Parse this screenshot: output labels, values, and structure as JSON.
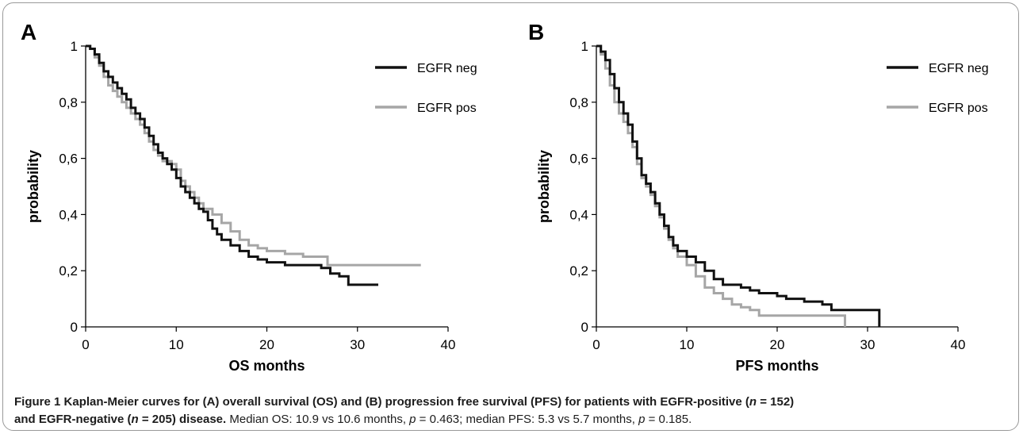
{
  "chart_data": [
    {
      "panel": "A",
      "type": "line",
      "step": true,
      "xlabel": "OS months",
      "ylabel": "probability",
      "xlim": [
        0,
        40
      ],
      "ylim": [
        0,
        1
      ],
      "xticks": [
        "0",
        "10",
        "20",
        "30",
        "40"
      ],
      "yticks": [
        "0",
        "0,2",
        "0,4",
        "0,6",
        "0,8",
        "1"
      ],
      "legend_position": "top-right",
      "series": [
        {
          "name": "EGFR neg",
          "color": "#111111",
          "points": [
            [
              0,
              1.0
            ],
            [
              0.5,
              0.99
            ],
            [
              1.0,
              0.97
            ],
            [
              1.5,
              0.94
            ],
            [
              2.0,
              0.91
            ],
            [
              2.5,
              0.89
            ],
            [
              3.0,
              0.87
            ],
            [
              3.5,
              0.85
            ],
            [
              4.0,
              0.83
            ],
            [
              4.5,
              0.81
            ],
            [
              5.0,
              0.78
            ],
            [
              5.5,
              0.76
            ],
            [
              6.0,
              0.74
            ],
            [
              6.5,
              0.71
            ],
            [
              7.0,
              0.68
            ],
            [
              7.5,
              0.65
            ],
            [
              8.0,
              0.62
            ],
            [
              8.5,
              0.6
            ],
            [
              9.0,
              0.58
            ],
            [
              9.5,
              0.56
            ],
            [
              10.0,
              0.53
            ],
            [
              10.5,
              0.5
            ],
            [
              11.0,
              0.48
            ],
            [
              11.5,
              0.46
            ],
            [
              12.0,
              0.44
            ],
            [
              12.5,
              0.42
            ],
            [
              13.0,
              0.41
            ],
            [
              13.5,
              0.38
            ],
            [
              14.0,
              0.35
            ],
            [
              14.5,
              0.33
            ],
            [
              15.0,
              0.31
            ],
            [
              16.0,
              0.29
            ],
            [
              17.0,
              0.27
            ],
            [
              18.0,
              0.25
            ],
            [
              19.0,
              0.24
            ],
            [
              20.0,
              0.23
            ],
            [
              21.0,
              0.23
            ],
            [
              22.0,
              0.22
            ],
            [
              24.0,
              0.22
            ],
            [
              26.0,
              0.21
            ],
            [
              27.0,
              0.19
            ],
            [
              28.0,
              0.18
            ],
            [
              29.0,
              0.15
            ],
            [
              30.0,
              0.15
            ],
            [
              32.3,
              0.15
            ]
          ]
        },
        {
          "name": "EGFR pos",
          "color": "#a6a6a6",
          "points": [
            [
              0,
              1.0
            ],
            [
              0.5,
              0.99
            ],
            [
              1.0,
              0.96
            ],
            [
              1.5,
              0.93
            ],
            [
              2.0,
              0.89
            ],
            [
              2.5,
              0.86
            ],
            [
              3.0,
              0.84
            ],
            [
              3.5,
              0.82
            ],
            [
              4.0,
              0.8
            ],
            [
              4.5,
              0.78
            ],
            [
              5.0,
              0.76
            ],
            [
              5.5,
              0.74
            ],
            [
              6.0,
              0.72
            ],
            [
              6.5,
              0.69
            ],
            [
              7.0,
              0.66
            ],
            [
              7.5,
              0.63
            ],
            [
              8.0,
              0.61
            ],
            [
              8.5,
              0.59
            ],
            [
              9.0,
              0.59
            ],
            [
              9.5,
              0.58
            ],
            [
              10.0,
              0.56
            ],
            [
              10.5,
              0.52
            ],
            [
              11.0,
              0.5
            ],
            [
              11.5,
              0.48
            ],
            [
              12.0,
              0.46
            ],
            [
              12.5,
              0.44
            ],
            [
              13.0,
              0.42
            ],
            [
              14.0,
              0.4
            ],
            [
              15.0,
              0.37
            ],
            [
              16.0,
              0.34
            ],
            [
              17.0,
              0.31
            ],
            [
              18.0,
              0.29
            ],
            [
              19.0,
              0.28
            ],
            [
              20.0,
              0.27
            ],
            [
              22.0,
              0.26
            ],
            [
              24.0,
              0.25
            ],
            [
              26.5,
              0.25
            ],
            [
              26.7,
              0.22
            ],
            [
              30.0,
              0.22
            ],
            [
              37.0,
              0.22
            ]
          ]
        }
      ]
    },
    {
      "panel": "B",
      "type": "line",
      "step": true,
      "xlabel": "PFS months",
      "ylabel": "probability",
      "xlim": [
        0,
        40
      ],
      "ylim": [
        0,
        1
      ],
      "xticks": [
        "0",
        "10",
        "20",
        "30",
        "40"
      ],
      "yticks": [
        "0",
        "0,2",
        "0,4",
        "0,6",
        "0,8",
        "1"
      ],
      "legend_position": "top-right",
      "series": [
        {
          "name": "EGFR neg",
          "color": "#111111",
          "points": [
            [
              0,
              1.0
            ],
            [
              0.5,
              0.98
            ],
            [
              1.0,
              0.95
            ],
            [
              1.5,
              0.9
            ],
            [
              2.0,
              0.85
            ],
            [
              2.5,
              0.8
            ],
            [
              3.0,
              0.76
            ],
            [
              3.5,
              0.72
            ],
            [
              4.0,
              0.66
            ],
            [
              4.5,
              0.6
            ],
            [
              5.0,
              0.54
            ],
            [
              5.5,
              0.51
            ],
            [
              6.0,
              0.48
            ],
            [
              6.5,
              0.44
            ],
            [
              7.0,
              0.4
            ],
            [
              7.5,
              0.36
            ],
            [
              8.0,
              0.32
            ],
            [
              8.5,
              0.29
            ],
            [
              9.0,
              0.27
            ],
            [
              10.0,
              0.25
            ],
            [
              11.0,
              0.23
            ],
            [
              12.0,
              0.2
            ],
            [
              13.0,
              0.17
            ],
            [
              14.0,
              0.15
            ],
            [
              16.0,
              0.14
            ],
            [
              17.0,
              0.13
            ],
            [
              18.0,
              0.12
            ],
            [
              20.0,
              0.11
            ],
            [
              21.0,
              0.1
            ],
            [
              23.0,
              0.09
            ],
            [
              25.0,
              0.08
            ],
            [
              26.0,
              0.06
            ],
            [
              30.0,
              0.06
            ],
            [
              31.3,
              0.06
            ],
            [
              31.3,
              0.0
            ]
          ]
        },
        {
          "name": "EGFR pos",
          "color": "#a6a6a6",
          "points": [
            [
              0,
              1.0
            ],
            [
              0.5,
              0.97
            ],
            [
              1.0,
              0.92
            ],
            [
              1.5,
              0.86
            ],
            [
              2.0,
              0.8
            ],
            [
              2.5,
              0.76
            ],
            [
              3.0,
              0.73
            ],
            [
              3.5,
              0.69
            ],
            [
              4.0,
              0.64
            ],
            [
              4.5,
              0.58
            ],
            [
              5.0,
              0.53
            ],
            [
              5.5,
              0.5
            ],
            [
              6.0,
              0.47
            ],
            [
              6.5,
              0.43
            ],
            [
              7.0,
              0.39
            ],
            [
              7.5,
              0.35
            ],
            [
              8.0,
              0.31
            ],
            [
              8.5,
              0.28
            ],
            [
              9.0,
              0.25
            ],
            [
              10.0,
              0.22
            ],
            [
              11.0,
              0.18
            ],
            [
              12.0,
              0.14
            ],
            [
              13.0,
              0.12
            ],
            [
              14.0,
              0.1
            ],
            [
              15.0,
              0.08
            ],
            [
              16.0,
              0.07
            ],
            [
              17.0,
              0.06
            ],
            [
              18.0,
              0.04
            ],
            [
              22.0,
              0.04
            ],
            [
              27.5,
              0.04
            ],
            [
              27.5,
              0.0
            ]
          ]
        }
      ]
    }
  ],
  "caption": {
    "label": "Figure 1",
    "bold_text": " Kaplan-Meier curves for (A) overall survival (OS) and (B) progression free survival (PFS) for patients with EGFR-positive (",
    "n_symbol": "n",
    "bold_n1": " = 152)",
    "bold_line2": " and EGFR-negative (",
    "bold_n2": " = 205) disease.",
    "median_os": " Median OS: 10.9 vs 10.6 months, ",
    "p_symbol": "p",
    "p_os": " = 0.463; median PFS: 5.3 vs 5.7 months, ",
    "p_pfs": " = 0.185."
  }
}
